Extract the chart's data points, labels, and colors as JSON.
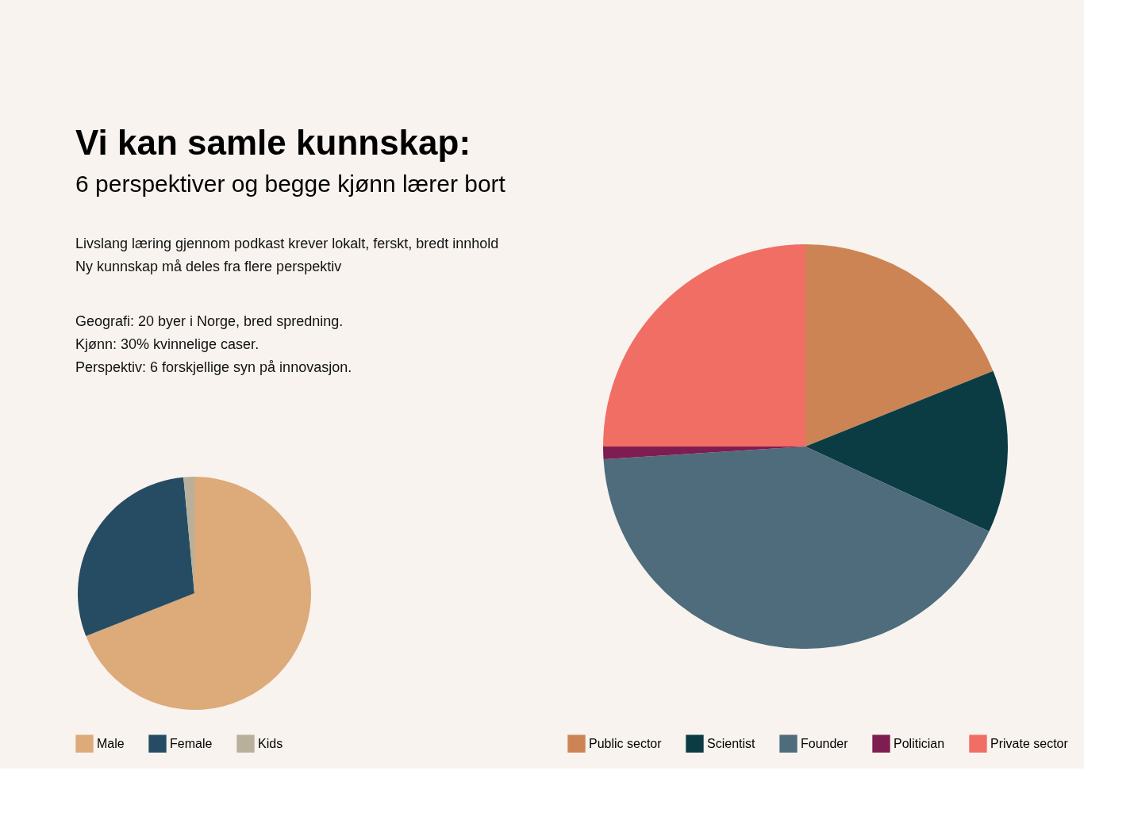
{
  "chart_data": [
    {
      "type": "pie",
      "title": "Vi kan samle kunnskap:",
      "subtitle": "6 perspektiver og begge kjønn lærer bort",
      "annotations": [
        "Livslang læring gjennom podkast krever lokalt, ferskt, bredt innhold",
        "Ny kunnskap må deles fra flere perspektiv",
        "Geografi: 20 byer i Norge, bred spredning.",
        "Kjønn: 30% kvinnelige caser.",
        "Perspektiv: 6 forskjellige syn på innovasjon."
      ],
      "categories": [
        "Male",
        "Female",
        "Kids"
      ],
      "values": [
        69,
        29.5,
        1.5
      ],
      "colors": [
        "#ddaa7a",
        "#264c63",
        "#b8b09a"
      ],
      "legend": "bottom"
    },
    {
      "type": "pie",
      "categories": [
        "Public sector",
        "Scientist",
        "Founder",
        "Politician",
        "Private sector"
      ],
      "values": [
        18.9,
        13.0,
        42.1,
        1.0,
        25.0
      ],
      "colors": [
        "#cd8455",
        "#0b3c44",
        "#4e6c7c",
        "#7e1d52",
        "#f06e64"
      ],
      "legend": "bottom"
    }
  ]
}
